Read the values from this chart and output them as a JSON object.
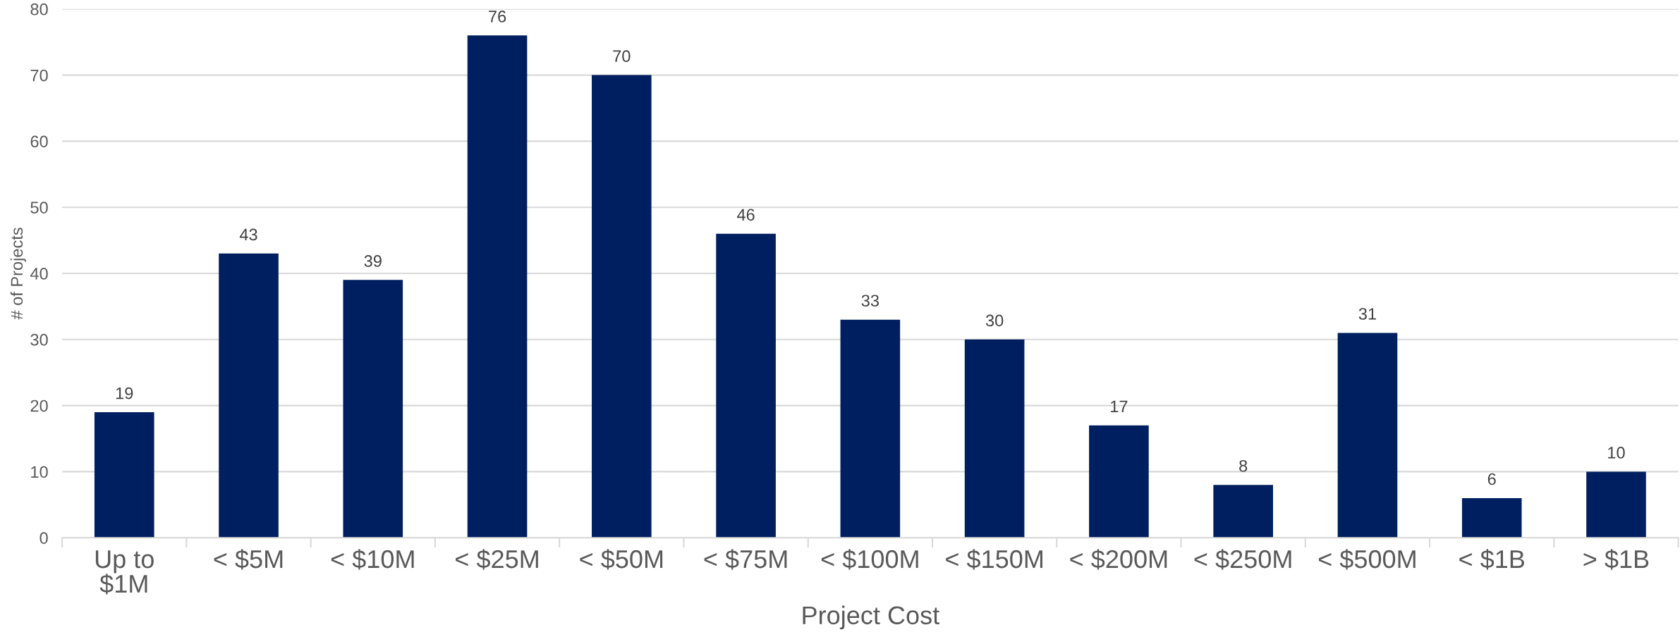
{
  "chart_data": {
    "type": "bar",
    "xlabel": "Project Cost",
    "ylabel": "# of Projects",
    "categories": [
      "Up to\n$1M",
      "< $5M",
      "< $10M",
      "< $25M",
      "< $50M",
      "< $75M",
      "< $100M",
      "< $150M",
      "< $200M",
      "< $250M",
      "< $500M",
      "< $1B",
      "> $1B"
    ],
    "values": [
      19,
      43,
      39,
      76,
      70,
      46,
      33,
      30,
      17,
      8,
      31,
      6,
      10
    ],
    "color": "#001f60",
    "ylim": [
      0,
      80
    ],
    "yticks": [
      0,
      10,
      20,
      30,
      40,
      50,
      60,
      70,
      80
    ],
    "grid": "y",
    "data_labels": true
  }
}
